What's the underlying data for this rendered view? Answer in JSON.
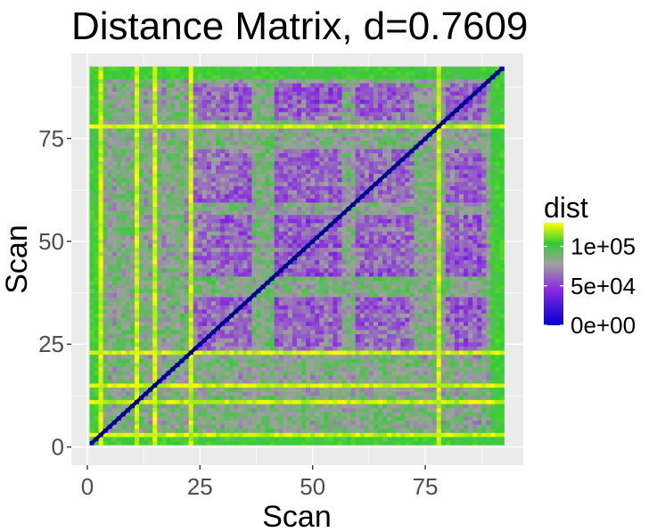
{
  "chart_data": {
    "type": "heatmap",
    "title": "Distance Matrix, d=0.7609",
    "xlabel": "Scan",
    "ylabel": "Scan",
    "n": 92,
    "xlim": [
      1,
      92
    ],
    "ylim": [
      1,
      92
    ],
    "x_ticks": [
      0,
      25,
      50,
      75
    ],
    "y_ticks": [
      0,
      25,
      50,
      75
    ],
    "x_tick_labels": [
      "0",
      "25",
      "50",
      "75"
    ],
    "y_tick_labels": [
      "0",
      "25",
      "50",
      "75"
    ],
    "grid": true,
    "panel_background": "#ebebeb",
    "diagonal_value": 0,
    "value_range": [
      0,
      130000
    ],
    "bright_scans": [
      3,
      11,
      15,
      23,
      78
    ],
    "dark_bands": [
      [
        24,
        36
      ],
      [
        42,
        56
      ],
      [
        60,
        72
      ],
      [
        80,
        88
      ]
    ],
    "legend": {
      "title": "dist",
      "position": "right",
      "breaks": [
        100000,
        50000,
        0
      ],
      "labels": [
        "1e+05",
        "5e+04",
        "0e+00"
      ],
      "colors": [
        {
          "stop": 0.0,
          "color": "#0000cd"
        },
        {
          "stop": 0.35,
          "color": "#8a2be2"
        },
        {
          "stop": 0.6,
          "color": "#a0a0a0"
        },
        {
          "stop": 0.8,
          "color": "#32cd32"
        },
        {
          "stop": 1.0,
          "color": "#ffff00"
        }
      ]
    }
  }
}
